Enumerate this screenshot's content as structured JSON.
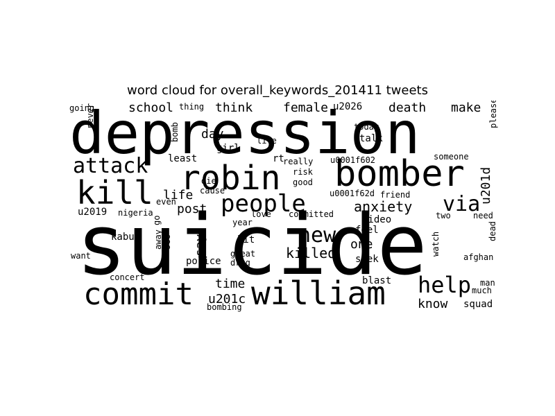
{
  "title": "word cloud for overall_keywords_201411 tweets",
  "words": [
    "suicide",
    "depression",
    "bomber",
    "robin",
    "commit",
    "william",
    "kill",
    "attack",
    "people",
    "new",
    "help",
    "via",
    "anxiety",
    "killed",
    "school",
    "think",
    "female",
    "death",
    "make",
    "u201d",
    "u2026",
    "know",
    "squad",
    "u201c",
    "time",
    "post",
    "life",
    "day",
    "say",
    "girl",
    "least",
    "die",
    "rt",
    "u0001f602",
    "someone",
    "u0001f62d",
    "friend",
    "risk",
    "good",
    "really",
    "cause",
    "even",
    "committed",
    "love",
    "video",
    "feel",
    "one",
    "seek",
    "u2019",
    "nigeria",
    "kabul",
    "go",
    "away",
    "see",
    "want",
    "hit",
    "great",
    "drug",
    "police",
    "concert",
    "year",
    "bombing",
    "blast",
    "today",
    "talk",
    "live",
    "going",
    "thing",
    "need",
    "two",
    "much",
    "man",
    "watch",
    "afghan",
    "dead",
    "please",
    "never",
    "bomb"
  ]
}
